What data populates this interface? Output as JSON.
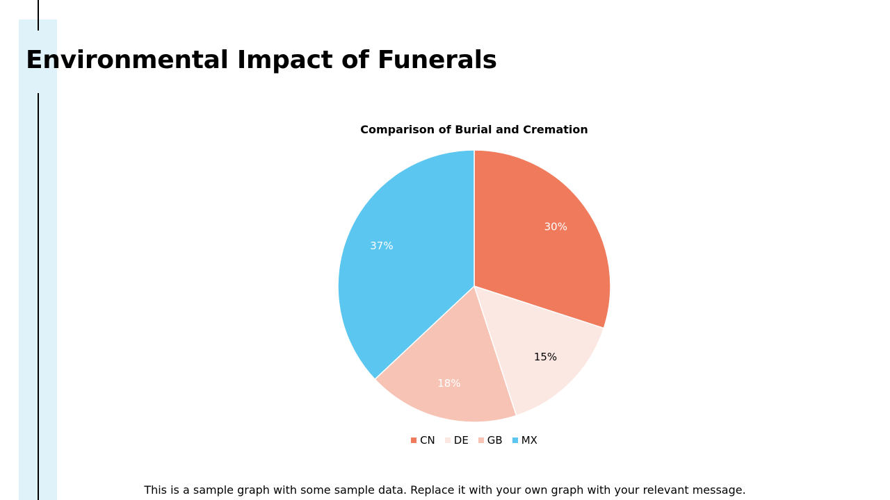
{
  "slide": {
    "title": "Environmental Impact of Funerals",
    "caption": "This is a sample graph with some sample data. Replace it with your own graph with your relevant message."
  },
  "chart_data": {
    "type": "pie",
    "title": "Comparison of Burial and Cremation",
    "legend_position": "bottom",
    "categories": [
      "CN",
      "DE",
      "GB",
      "MX"
    ],
    "values": [
      30,
      15,
      18,
      37
    ],
    "labels": [
      "30%",
      "15%",
      "18%",
      "37%"
    ],
    "colors": [
      "#ef7b5c",
      "#fce8e3",
      "#f7c3b5",
      "#5bc6f0"
    ],
    "label_colors": [
      "#ffffff",
      "#000000",
      "#ffffff",
      "#ffffff"
    ]
  },
  "theme": {
    "accent_band": "#dff2fa"
  }
}
